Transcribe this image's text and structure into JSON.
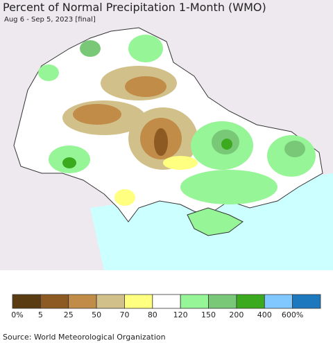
{
  "header": {
    "title": "Percent of Normal Precipitation 1-Month (WMO)",
    "subtitle": "Aug 6 - Sep 5, 2023 [final]"
  },
  "legend": {
    "items": [
      {
        "label": "0%",
        "color": "#5a3c12"
      },
      {
        "label": "5",
        "color": "#8d5a24"
      },
      {
        "label": "25",
        "color": "#c08c48"
      },
      {
        "label": "50",
        "color": "#d2c08a"
      },
      {
        "label": "70",
        "color": "#ffff80"
      },
      {
        "label": "80",
        "color": "#ffffff"
      },
      {
        "label": "120",
        "color": "#96f596"
      },
      {
        "label": "150",
        "color": "#78c878"
      },
      {
        "label": "200",
        "color": "#3caa1e"
      },
      {
        "label": "400",
        "color": "#80c8ff"
      },
      {
        "label": "600%",
        "color": "#1e78be"
      }
    ]
  },
  "footer": {
    "source": "Source: World Meteorological Organization"
  }
}
